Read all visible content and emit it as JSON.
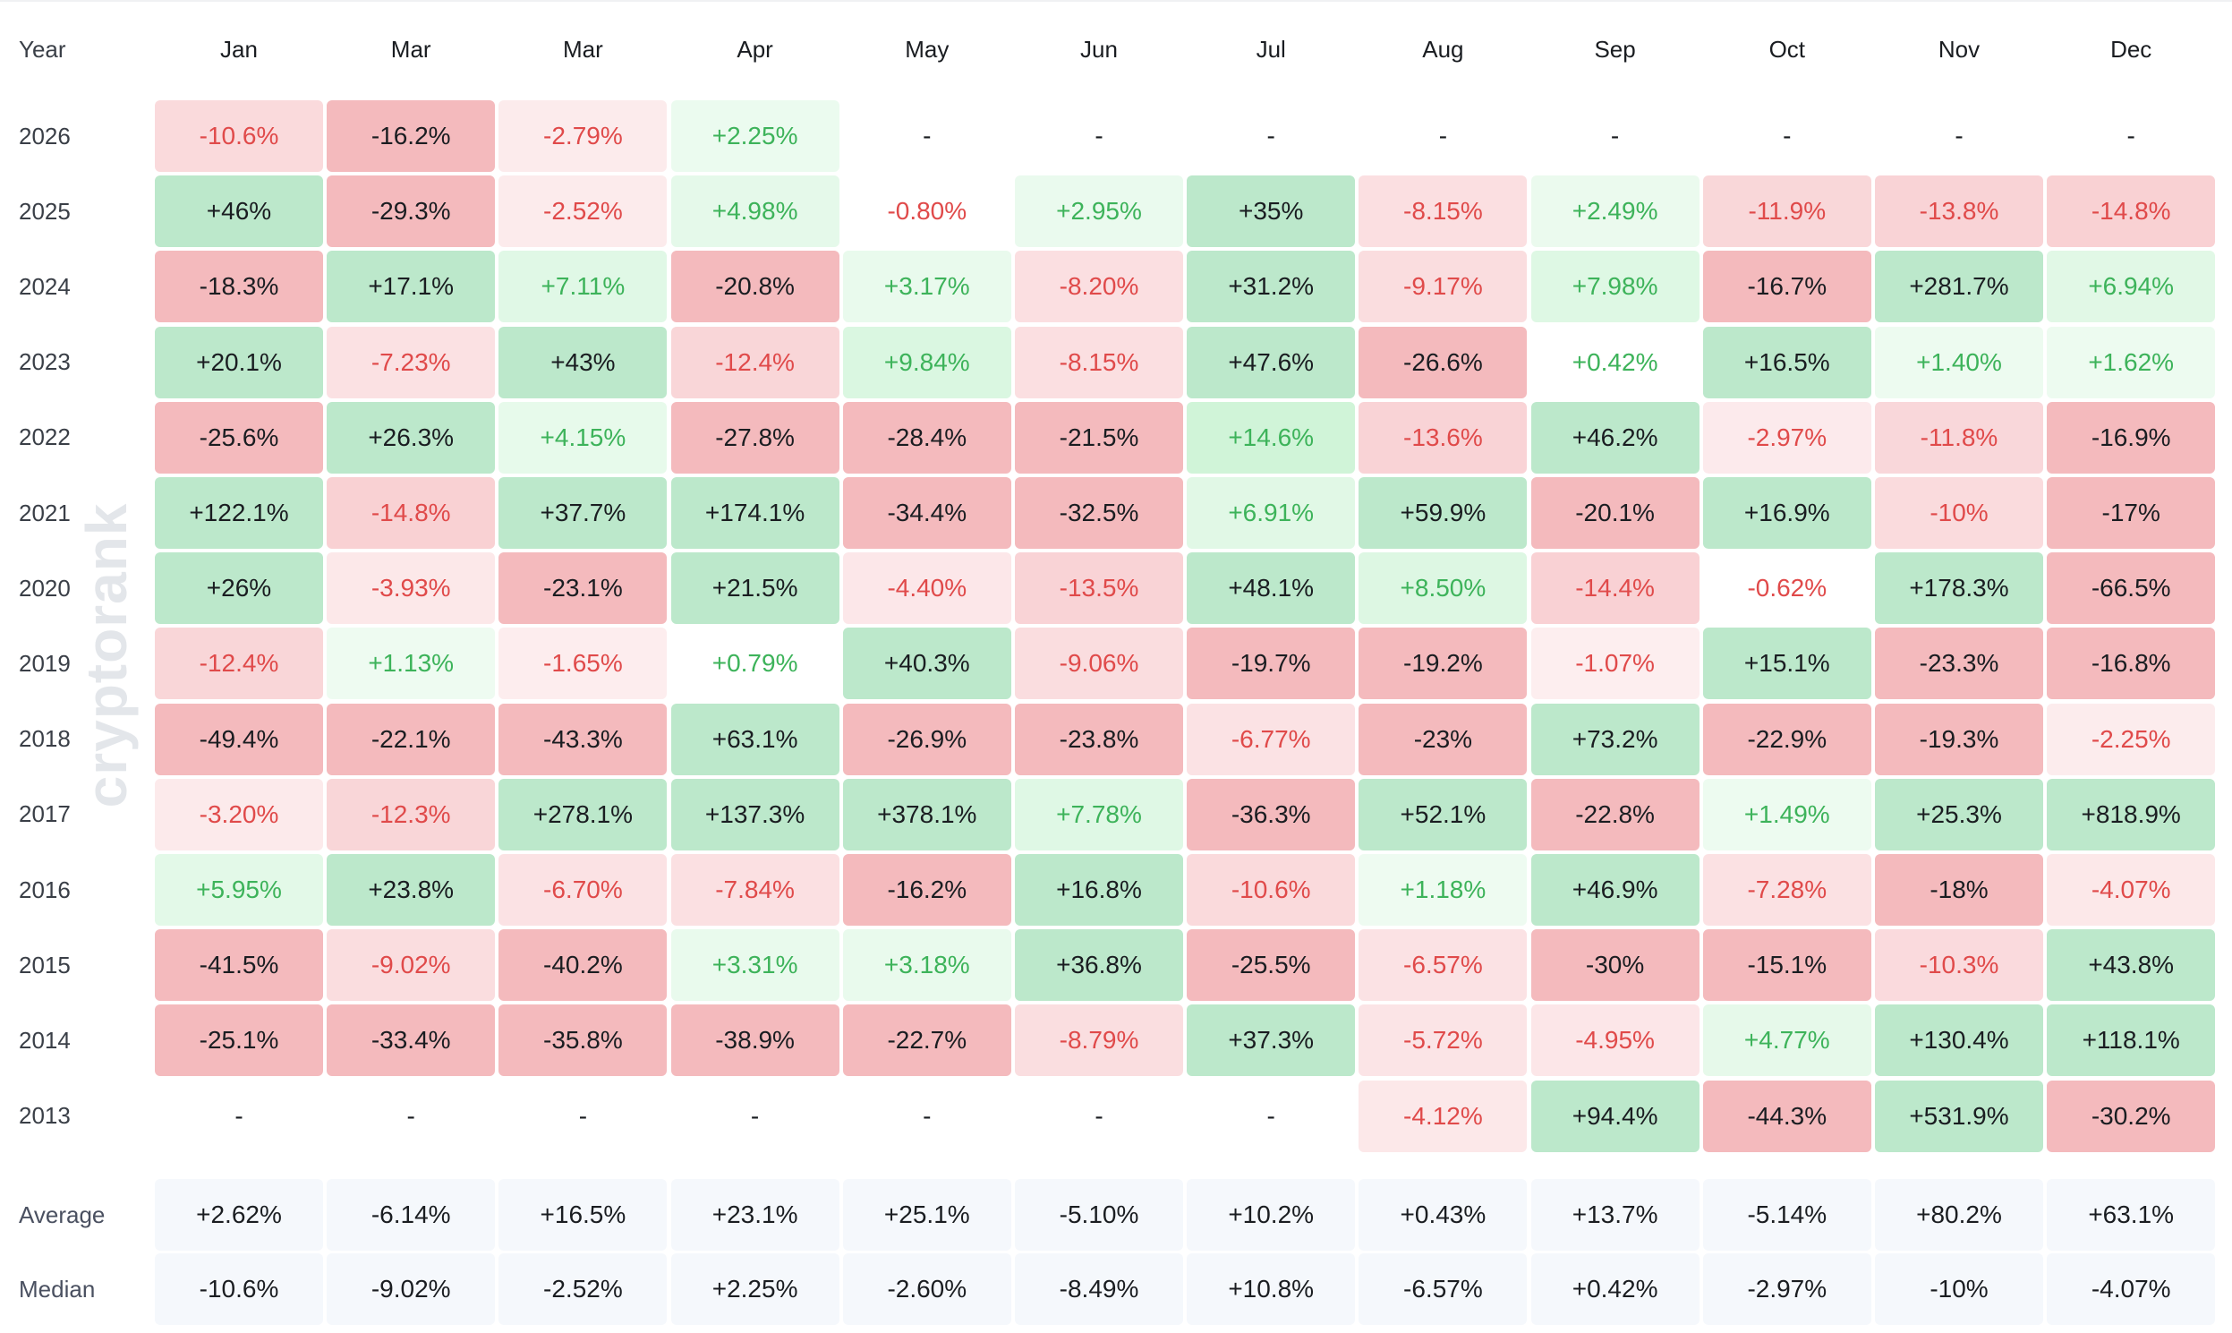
{
  "watermark": "cryptorank",
  "table": {
    "header": [
      "Year",
      "Jan",
      "Mar",
      "Mar",
      "Apr",
      "May",
      "Jun",
      "Jul",
      "Aug",
      "Sep",
      "Oct",
      "Nov",
      "Dec"
    ],
    "rows": [
      [
        "2026",
        "-10.6%",
        "-16.2%",
        "-2.79%",
        "+2.25%",
        "-",
        "-",
        "-",
        "-",
        "-",
        "-",
        "-",
        "-"
      ],
      [
        "2025",
        "+46%",
        "-29.3%",
        "-2.52%",
        "+4.98%",
        "-0.80%",
        "+2.95%",
        "+35%",
        "-8.15%",
        "+2.49%",
        "-11.9%",
        "-13.8%",
        "-14.8%"
      ],
      [
        "2024",
        "-18.3%",
        "+17.1%",
        "+7.11%",
        "-20.8%",
        "+3.17%",
        "-8.20%",
        "+31.2%",
        "-9.17%",
        "+7.98%",
        "-16.7%",
        "+281.7%",
        "+6.94%"
      ],
      [
        "2023",
        "+20.1%",
        "-7.23%",
        "+43%",
        "-12.4%",
        "+9.84%",
        "-8.15%",
        "+47.6%",
        "-26.6%",
        "+0.42%",
        "+16.5%",
        "+1.40%",
        "+1.62%"
      ],
      [
        "2022",
        "-25.6%",
        "+26.3%",
        "+4.15%",
        "-27.8%",
        "-28.4%",
        "-21.5%",
        "+14.6%",
        "-13.6%",
        "+46.2%",
        "-2.97%",
        "-11.8%",
        "-16.9%"
      ],
      [
        "2021",
        "+122.1%",
        "-14.8%",
        "+37.7%",
        "+174.1%",
        "-34.4%",
        "-32.5%",
        "+6.91%",
        "+59.9%",
        "-20.1%",
        "+16.9%",
        "-10%",
        "-17%"
      ],
      [
        "2020",
        "+26%",
        "-3.93%",
        "-23.1%",
        "+21.5%",
        "-4.40%",
        "-13.5%",
        "+48.1%",
        "+8.50%",
        "-14.4%",
        "-0.62%",
        "+178.3%",
        "-66.5%"
      ],
      [
        "2019",
        "-12.4%",
        "+1.13%",
        "-1.65%",
        "+0.79%",
        "+40.3%",
        "-9.06%",
        "-19.7%",
        "-19.2%",
        "-1.07%",
        "+15.1%",
        "-23.3%",
        "-16.8%"
      ],
      [
        "2018",
        "-49.4%",
        "-22.1%",
        "-43.3%",
        "+63.1%",
        "-26.9%",
        "-23.8%",
        "-6.77%",
        "-23%",
        "+73.2%",
        "-22.9%",
        "-19.3%",
        "-2.25%"
      ],
      [
        "2017",
        "-3.20%",
        "-12.3%",
        "+278.1%",
        "+137.3%",
        "+378.1%",
        "+7.78%",
        "-36.3%",
        "+52.1%",
        "-22.8%",
        "+1.49%",
        "+25.3%",
        "+818.9%"
      ],
      [
        "2016",
        "+5.95%",
        "+23.8%",
        "-6.70%",
        "-7.84%",
        "-16.2%",
        "+16.8%",
        "-10.6%",
        "+1.18%",
        "+46.9%",
        "-7.28%",
        "-18%",
        "-4.07%"
      ],
      [
        "2015",
        "-41.5%",
        "-9.02%",
        "-40.2%",
        "+3.31%",
        "+3.18%",
        "+36.8%",
        "-25.5%",
        "-6.57%",
        "-30%",
        "-15.1%",
        "-10.3%",
        "+43.8%"
      ],
      [
        "2014",
        "-25.1%",
        "-33.4%",
        "-35.8%",
        "-38.9%",
        "-22.7%",
        "-8.79%",
        "+37.3%",
        "-5.72%",
        "-4.95%",
        "+4.77%",
        "+130.4%",
        "+118.1%"
      ],
      [
        "2013",
        "-",
        "-",
        "-",
        "-",
        "-",
        "-",
        "-",
        "-4.12%",
        "+94.4%",
        "-44.3%",
        "+531.9%",
        "-30.2%"
      ]
    ],
    "summary": [
      [
        "Average",
        "+2.62%",
        "-6.14%",
        "+16.5%",
        "+23.1%",
        "+25.1%",
        "-5.10%",
        "+10.2%",
        "+0.43%",
        "+13.7%",
        "-5.14%",
        "+80.2%",
        "+63.1%"
      ],
      [
        "Median",
        "-10.6%",
        "-9.02%",
        "-2.52%",
        "+2.25%",
        "-2.60%",
        "-8.49%",
        "+10.8%",
        "-6.57%",
        "+0.42%",
        "-2.97%",
        "-10%",
        "-4.07%"
      ]
    ]
  }
}
